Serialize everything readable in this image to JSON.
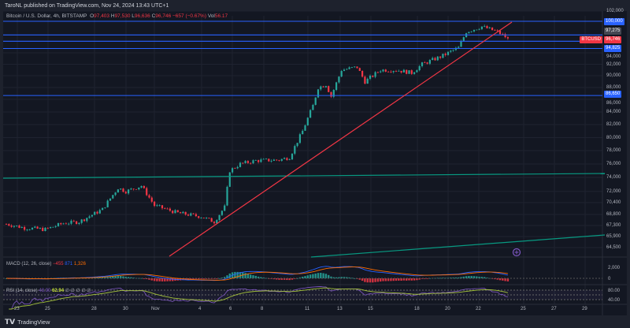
{
  "header": {
    "published": "TaroNL published on TradingView.com, Nov 24, 2024 13:43 UTC+1"
  },
  "legend": {
    "symbol": "Bitcoin / U.S. Dollar, 4h, BITSTAMP",
    "o_label": "O",
    "o": "97,403",
    "h_label": "H",
    "h": "97,530",
    "l_label": "L",
    "l": "96,636",
    "c_label": "C",
    "c": "96,746",
    "change": "−657 (−0.67%)",
    "vol_label": "Vol",
    "vol": "56.17"
  },
  "macd": {
    "label": "MACD (12, 26, close)",
    "hist": "−455",
    "macd": "871",
    "signal": "1,326",
    "axis": [
      "2,000",
      "0"
    ]
  },
  "rsi": {
    "label": "RSI (14, close)",
    "rsi": "48.90",
    "ma": "62.94",
    "extra": "∅ ∅ ∅ ∅ ∅",
    "axis": [
      "80.00",
      "40.00"
    ]
  },
  "price_axis": [
    [
      "102,000",
      102000
    ],
    [
      "94,000",
      94000
    ],
    [
      "92,000",
      92000
    ],
    [
      "90,000",
      90000
    ],
    [
      "88,000",
      88000
    ],
    [
      "86,000",
      86000
    ],
    [
      "84,000",
      84000
    ],
    [
      "82,000",
      82000
    ],
    [
      "80,000",
      80000
    ],
    [
      "78,000",
      78000
    ],
    [
      "76,000",
      76000
    ],
    [
      "74,000",
      74000
    ],
    [
      "72,000",
      72000
    ],
    [
      "70,400",
      70400
    ],
    [
      "68,800",
      68800
    ],
    [
      "67,300",
      67300
    ],
    [
      "65,900",
      65900
    ],
    [
      "64,500",
      64500
    ]
  ],
  "tags": {
    "level_100": "100,000",
    "countdown": "97,275",
    "symbol_tag": "BTCUSD",
    "last": "96,746",
    "level_94": "94,825",
    "level_86": "86,650"
  },
  "date_axis": [
    "23",
    "25",
    "28",
    "30",
    "Nov",
    "4",
    "6",
    "8",
    "11",
    "13",
    "15",
    "18",
    "20",
    "22",
    "25",
    "27",
    "29"
  ],
  "footer": {
    "brand": "TradingView"
  },
  "colors": {
    "up": "#26a69a",
    "down": "#f23645",
    "level": "#2962ff",
    "trend": "#f23645",
    "channel": "#089981",
    "macd": "#2962ff",
    "signal": "#ff6d00",
    "rsi": "#7e57c2",
    "rsi_ma": "#a5c33b"
  },
  "chart_data": {
    "type": "candlestick",
    "interval": "4h",
    "price_path": [
      [
        0,
        67500
      ],
      [
        7,
        67000
      ],
      [
        15,
        66800
      ],
      [
        22,
        67600
      ],
      [
        28,
        67800
      ],
      [
        37,
        69500
      ],
      [
        43,
        72500
      ],
      [
        46,
        72000
      ],
      [
        52,
        72800
      ],
      [
        57,
        70000
      ],
      [
        66,
        69000
      ],
      [
        75,
        68500
      ],
      [
        80,
        67800
      ],
      [
        84,
        69800
      ],
      [
        86,
        75000
      ],
      [
        90,
        76000
      ],
      [
        96,
        76500
      ],
      [
        105,
        76600
      ],
      [
        109,
        77000
      ],
      [
        114,
        81000
      ],
      [
        118,
        85000
      ],
      [
        120,
        88000
      ],
      [
        123,
        88500
      ],
      [
        125,
        86500
      ],
      [
        129,
        91000
      ],
      [
        135,
        91500
      ],
      [
        138,
        89000
      ],
      [
        144,
        91000
      ],
      [
        150,
        91000
      ],
      [
        156,
        90500
      ],
      [
        160,
        92000
      ],
      [
        168,
        93500
      ],
      [
        174,
        95000
      ],
      [
        177,
        98000
      ],
      [
        183,
        99000
      ],
      [
        189,
        98000
      ],
      [
        193,
        96746
      ]
    ],
    "levels": [
      100000,
      97400,
      96200,
      94825,
      86650
    ]
  }
}
